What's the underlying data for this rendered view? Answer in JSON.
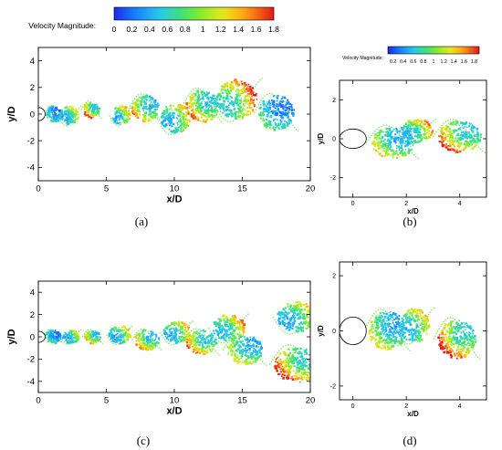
{
  "chart_data": [
    {
      "type": "scatter",
      "panel": "a",
      "caption": "(a)",
      "xlabel": "x/D",
      "ylabel": "y/D",
      "xlim": [
        0,
        20
      ],
      "ylim": [
        -5,
        5
      ],
      "xticks": [
        0,
        5,
        10,
        15,
        20
      ],
      "yticks": [
        -4,
        -2,
        0,
        2,
        4
      ],
      "colorbar": {
        "title": "Velocity Magnitude:",
        "ticks": [
          "0",
          "0.2",
          "0.4",
          "0.6",
          "0.8",
          "1",
          "1.2",
          "1.4",
          "1.6",
          "1.8"
        ],
        "range": [
          0,
          1.8
        ]
      },
      "cylinder": {
        "cx": 0,
        "cy": 0,
        "r": 0.5
      },
      "vortices": [
        {
          "x": 1.2,
          "y": 0.0,
          "r": 0.6,
          "v": 0.6
        },
        {
          "x": 2.3,
          "y": -0.1,
          "r": 0.7,
          "v": 1.1
        },
        {
          "x": 3.9,
          "y": 0.3,
          "r": 0.6,
          "v": 1.5
        },
        {
          "x": 6.1,
          "y": -0.1,
          "r": 0.7,
          "v": 1.2
        },
        {
          "x": 7.9,
          "y": 0.4,
          "r": 1.0,
          "v": 1.3
        },
        {
          "x": 10.1,
          "y": -0.3,
          "r": 1.1,
          "v": 1.2
        },
        {
          "x": 12.1,
          "y": 0.6,
          "r": 1.2,
          "v": 1.4
        },
        {
          "x": 14.6,
          "y": 1.1,
          "r": 1.5,
          "v": 1.6
        },
        {
          "x": 17.5,
          "y": 0.1,
          "r": 1.3,
          "v": 0.7
        }
      ]
    },
    {
      "type": "scatter",
      "panel": "b",
      "caption": "(b)",
      "xlabel": "x/D",
      "ylabel": "y/D",
      "xlim": [
        -0.5,
        5
      ],
      "ylim": [
        -3,
        3
      ],
      "xticks": [
        0,
        2,
        4
      ],
      "yticks": [
        -2,
        0,
        2
      ],
      "colorbar": {
        "title": "Velocity Magnitude:",
        "ticks": [
          "0.2",
          "0.4",
          "0.6",
          "0.8",
          "1",
          "1.2",
          "1.4",
          "1.6",
          "1.8"
        ],
        "range": [
          0.1,
          1.9
        ]
      },
      "cylinder": {
        "cx": 0,
        "cy": 0,
        "r": 0.5
      },
      "vortices": [
        {
          "x": 1.5,
          "y": -0.2,
          "r": 0.8,
          "v": 1.1
        },
        {
          "x": 2.4,
          "y": 0.4,
          "r": 0.6,
          "v": 1.3
        },
        {
          "x": 4.0,
          "y": 0.1,
          "r": 0.8,
          "v": 1.5
        }
      ]
    },
    {
      "type": "scatter",
      "panel": "c",
      "caption": "(c)",
      "xlabel": "x/D",
      "ylabel": "y/D",
      "xlim": [
        0,
        20
      ],
      "ylim": [
        -5,
        5
      ],
      "xticks": [
        0,
        5,
        10,
        15,
        20
      ],
      "yticks": [
        -4,
        -2,
        0,
        2,
        4
      ],
      "cylinder": {
        "cx": 0,
        "cy": 0,
        "r": 0.5
      },
      "vortices": [
        {
          "x": 1.1,
          "y": 0.0,
          "r": 0.6,
          "v": 0.7
        },
        {
          "x": 2.4,
          "y": 0.0,
          "r": 0.6,
          "v": 1.0
        },
        {
          "x": 4.0,
          "y": 0.0,
          "r": 0.6,
          "v": 1.3
        },
        {
          "x": 6.0,
          "y": 0.2,
          "r": 0.8,
          "v": 1.1
        },
        {
          "x": 8.0,
          "y": -0.3,
          "r": 0.9,
          "v": 1.3
        },
        {
          "x": 10.2,
          "y": 0.4,
          "r": 1.0,
          "v": 1.2
        },
        {
          "x": 12.0,
          "y": -0.5,
          "r": 1.1,
          "v": 1.4
        },
        {
          "x": 14.0,
          "y": 0.8,
          "r": 1.2,
          "v": 1.3
        },
        {
          "x": 15.2,
          "y": -1.2,
          "r": 1.3,
          "v": 1.1
        },
        {
          "x": 19.0,
          "y": 1.8,
          "r": 1.4,
          "v": 1.2
        },
        {
          "x": 19.0,
          "y": -2.5,
          "r": 1.6,
          "v": 1.6
        }
      ]
    },
    {
      "type": "scatter",
      "panel": "d",
      "caption": "(d)",
      "xlabel": "x/D",
      "ylabel": "y/D",
      "xlim": [
        -0.5,
        5
      ],
      "ylim": [
        -2.5,
        2.5
      ],
      "xticks": [
        0,
        2,
        4
      ],
      "yticks": [
        -2,
        0,
        2
      ],
      "cylinder": {
        "cx": 0,
        "cy": 0,
        "r": 0.5
      },
      "vortices": [
        {
          "x": 1.3,
          "y": 0.0,
          "r": 0.7,
          "v": 1.1
        },
        {
          "x": 2.3,
          "y": 0.2,
          "r": 0.6,
          "v": 1.2
        },
        {
          "x": 3.9,
          "y": -0.3,
          "r": 0.7,
          "v": 1.6
        }
      ]
    }
  ]
}
